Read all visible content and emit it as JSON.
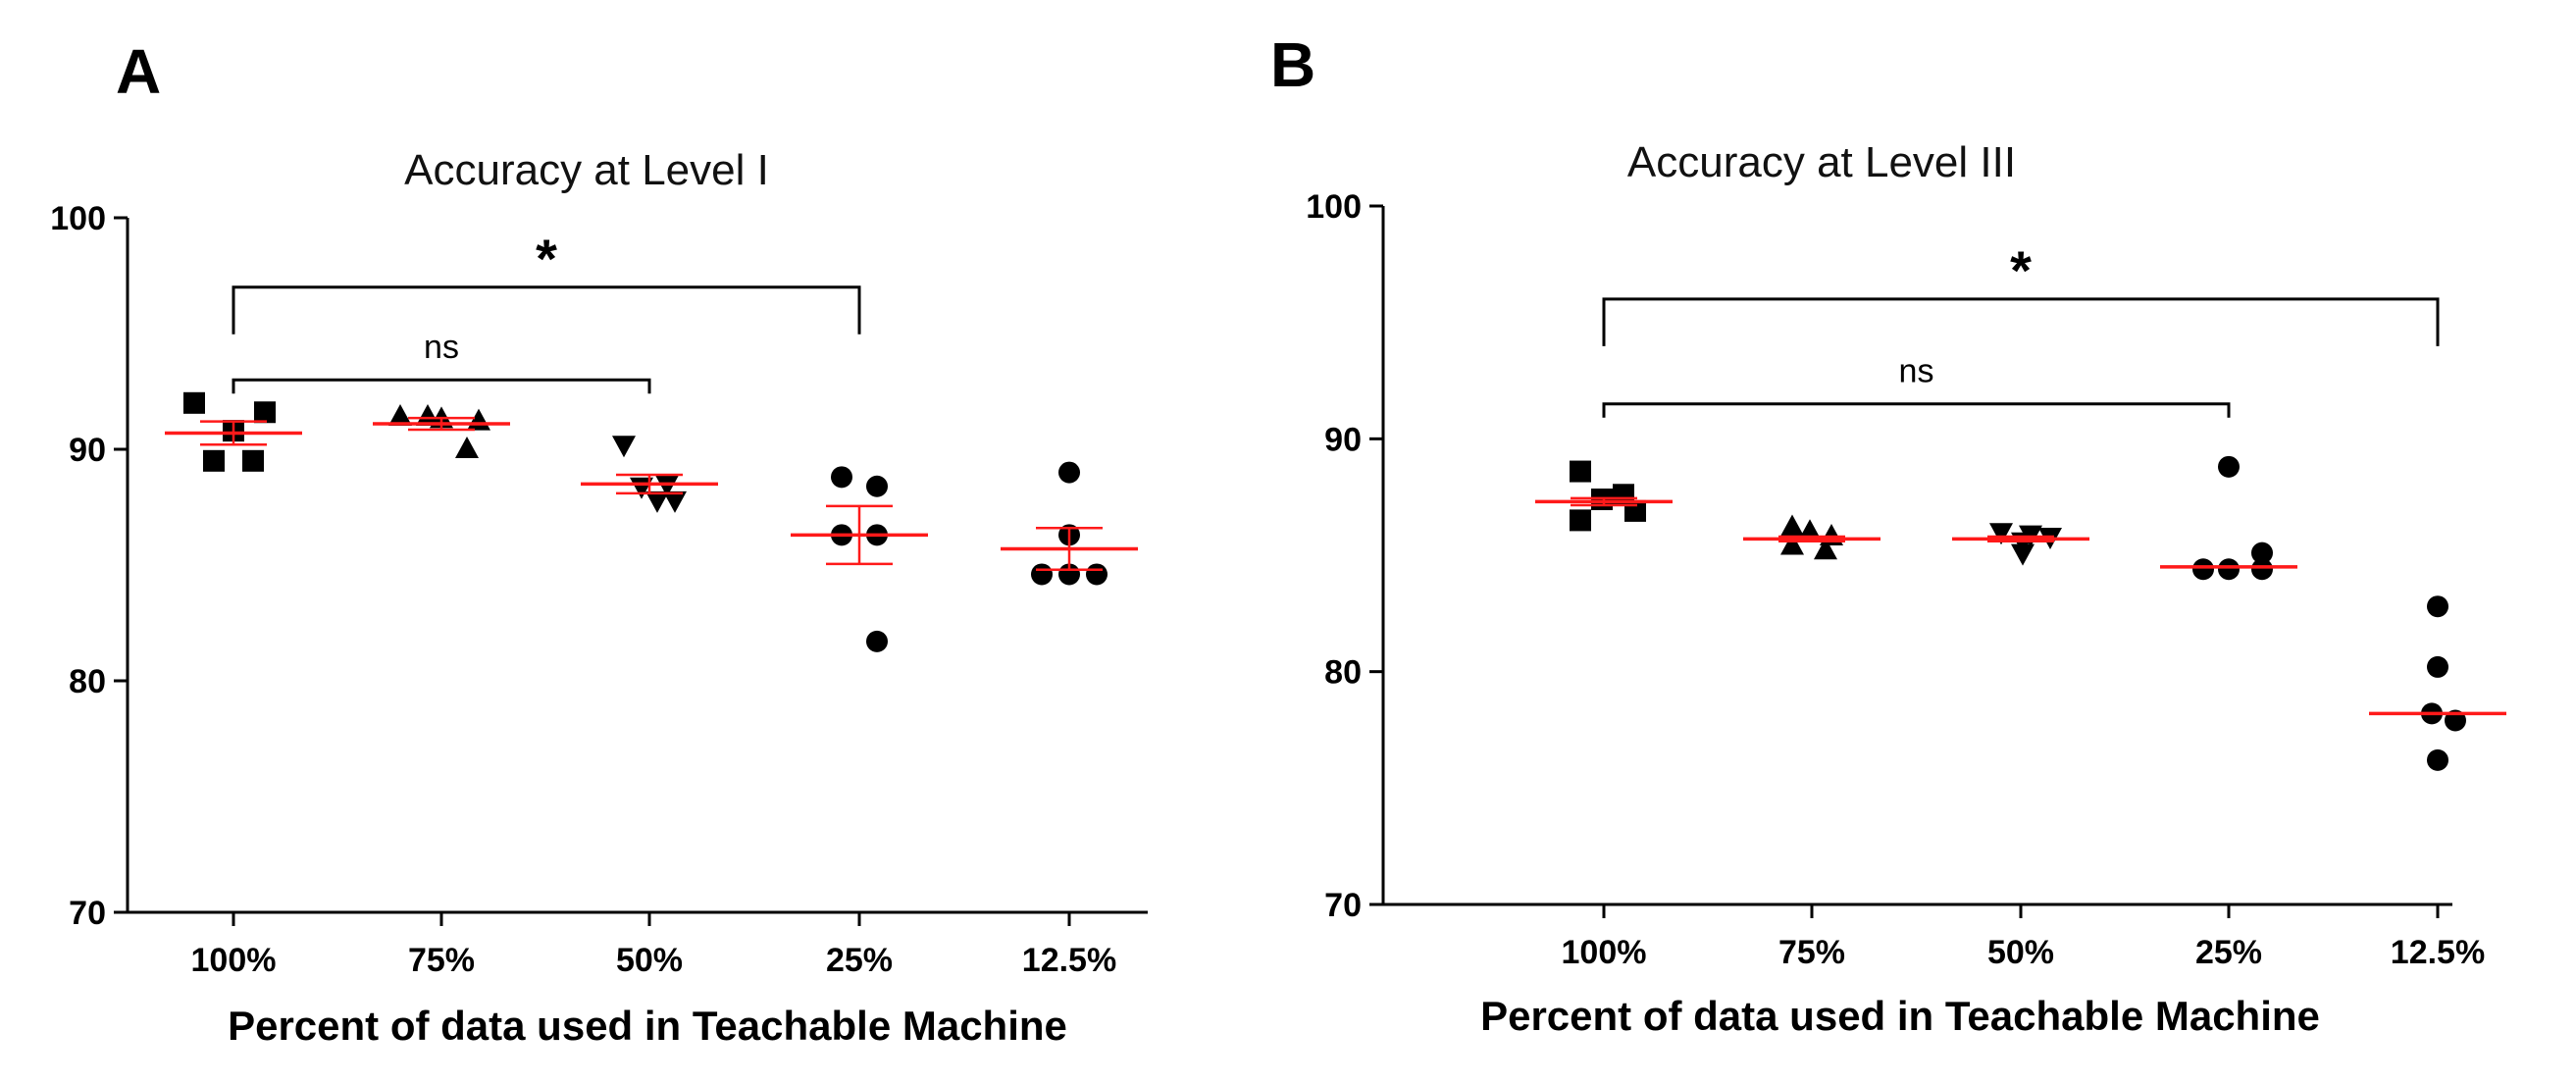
{
  "chart_data": [
    {
      "panel": "A",
      "type": "scatter",
      "title": "Accuracy at Level I",
      "xlabel": "Percent of data used in Teachable Machine",
      "ylabel": "",
      "ylim": [
        70,
        100
      ],
      "yticks": [
        70,
        80,
        90,
        100
      ],
      "categories": [
        "100%",
        "75%",
        "50%",
        "25%",
        "12.5%"
      ],
      "series": [
        {
          "name": "100%",
          "marker": "square",
          "values": [
            92.0,
            91.6,
            90.8,
            89.5,
            89.5
          ],
          "mean": 90.7,
          "sem": 0.5
        },
        {
          "name": "75%",
          "marker": "triangle-up",
          "values": [
            91.4,
            91.2,
            91.3,
            91.4,
            90.0
          ],
          "mean": 91.1,
          "sem": 0.25
        },
        {
          "name": "50%",
          "marker": "triangle-down",
          "values": [
            90.2,
            88.5,
            88.4,
            87.8,
            87.8
          ],
          "mean": 88.5,
          "sem": 0.4
        },
        {
          "name": "25%",
          "marker": "circle",
          "values": [
            88.8,
            88.4,
            86.3,
            86.3,
            81.7
          ],
          "mean": 86.3,
          "sem": 1.25
        },
        {
          "name": "12.5%",
          "marker": "circle",
          "values": [
            89.0,
            86.3,
            84.6,
            84.6,
            84.6
          ],
          "mean": 85.7,
          "sem": 0.9
        }
      ],
      "comparisons": [
        {
          "from": "100%",
          "to": "25%",
          "label": "*",
          "level": 97.0
        },
        {
          "from": "100%",
          "to": "50%",
          "label": "ns",
          "level": 93.0
        }
      ],
      "markers": [
        "square",
        "triangle-up",
        "triangle-down",
        "circle",
        "circle"
      ]
    },
    {
      "panel": "B",
      "type": "scatter",
      "title": "Accuracy at Level III",
      "xlabel": "Percent of data used in Teachable Machine",
      "ylabel": "",
      "ylim": [
        70,
        100
      ],
      "yticks": [
        70,
        80,
        90,
        100
      ],
      "categories": [
        "100%",
        "75%",
        "50%",
        "25%",
        "12.5%"
      ],
      "series": [
        {
          "name": "100%",
          "marker": "square",
          "values": [
            88.6,
            87.6,
            87.4,
            86.9,
            86.5
          ],
          "mean": 87.3,
          "sem": 0.15
        },
        {
          "name": "75%",
          "marker": "triangle-up",
          "values": [
            86.2,
            86.0,
            85.8,
            85.4,
            85.2
          ],
          "mean": 85.7,
          "sem": 0.1
        },
        {
          "name": "50%",
          "marker": "triangle-down",
          "values": [
            86.0,
            85.9,
            85.8,
            85.6,
            85.1
          ],
          "mean": 85.7,
          "sem": 0.1
        },
        {
          "name": "25%",
          "marker": "circle",
          "values": [
            88.8,
            85.1,
            84.4,
            84.4,
            84.4
          ],
          "mean": 84.5,
          "sem": 0.05
        },
        {
          "name": "12.5%",
          "marker": "circle",
          "values": [
            82.8,
            80.2,
            78.2,
            77.9,
            76.2
          ],
          "mean": 78.2,
          "sem": 0.05
        }
      ],
      "comparisons": [
        {
          "from": "100%",
          "to": "12.5%",
          "label": "*",
          "level": 96.0
        },
        {
          "from": "100%",
          "to": "25%",
          "label": "ns",
          "level": 91.5
        }
      ],
      "markers": [
        "square",
        "triangle-up",
        "triangle-down",
        "circle",
        "circle"
      ]
    }
  ],
  "colors": {
    "points": "#000000",
    "mean": "#ff1a1a",
    "axes": "#000000"
  }
}
